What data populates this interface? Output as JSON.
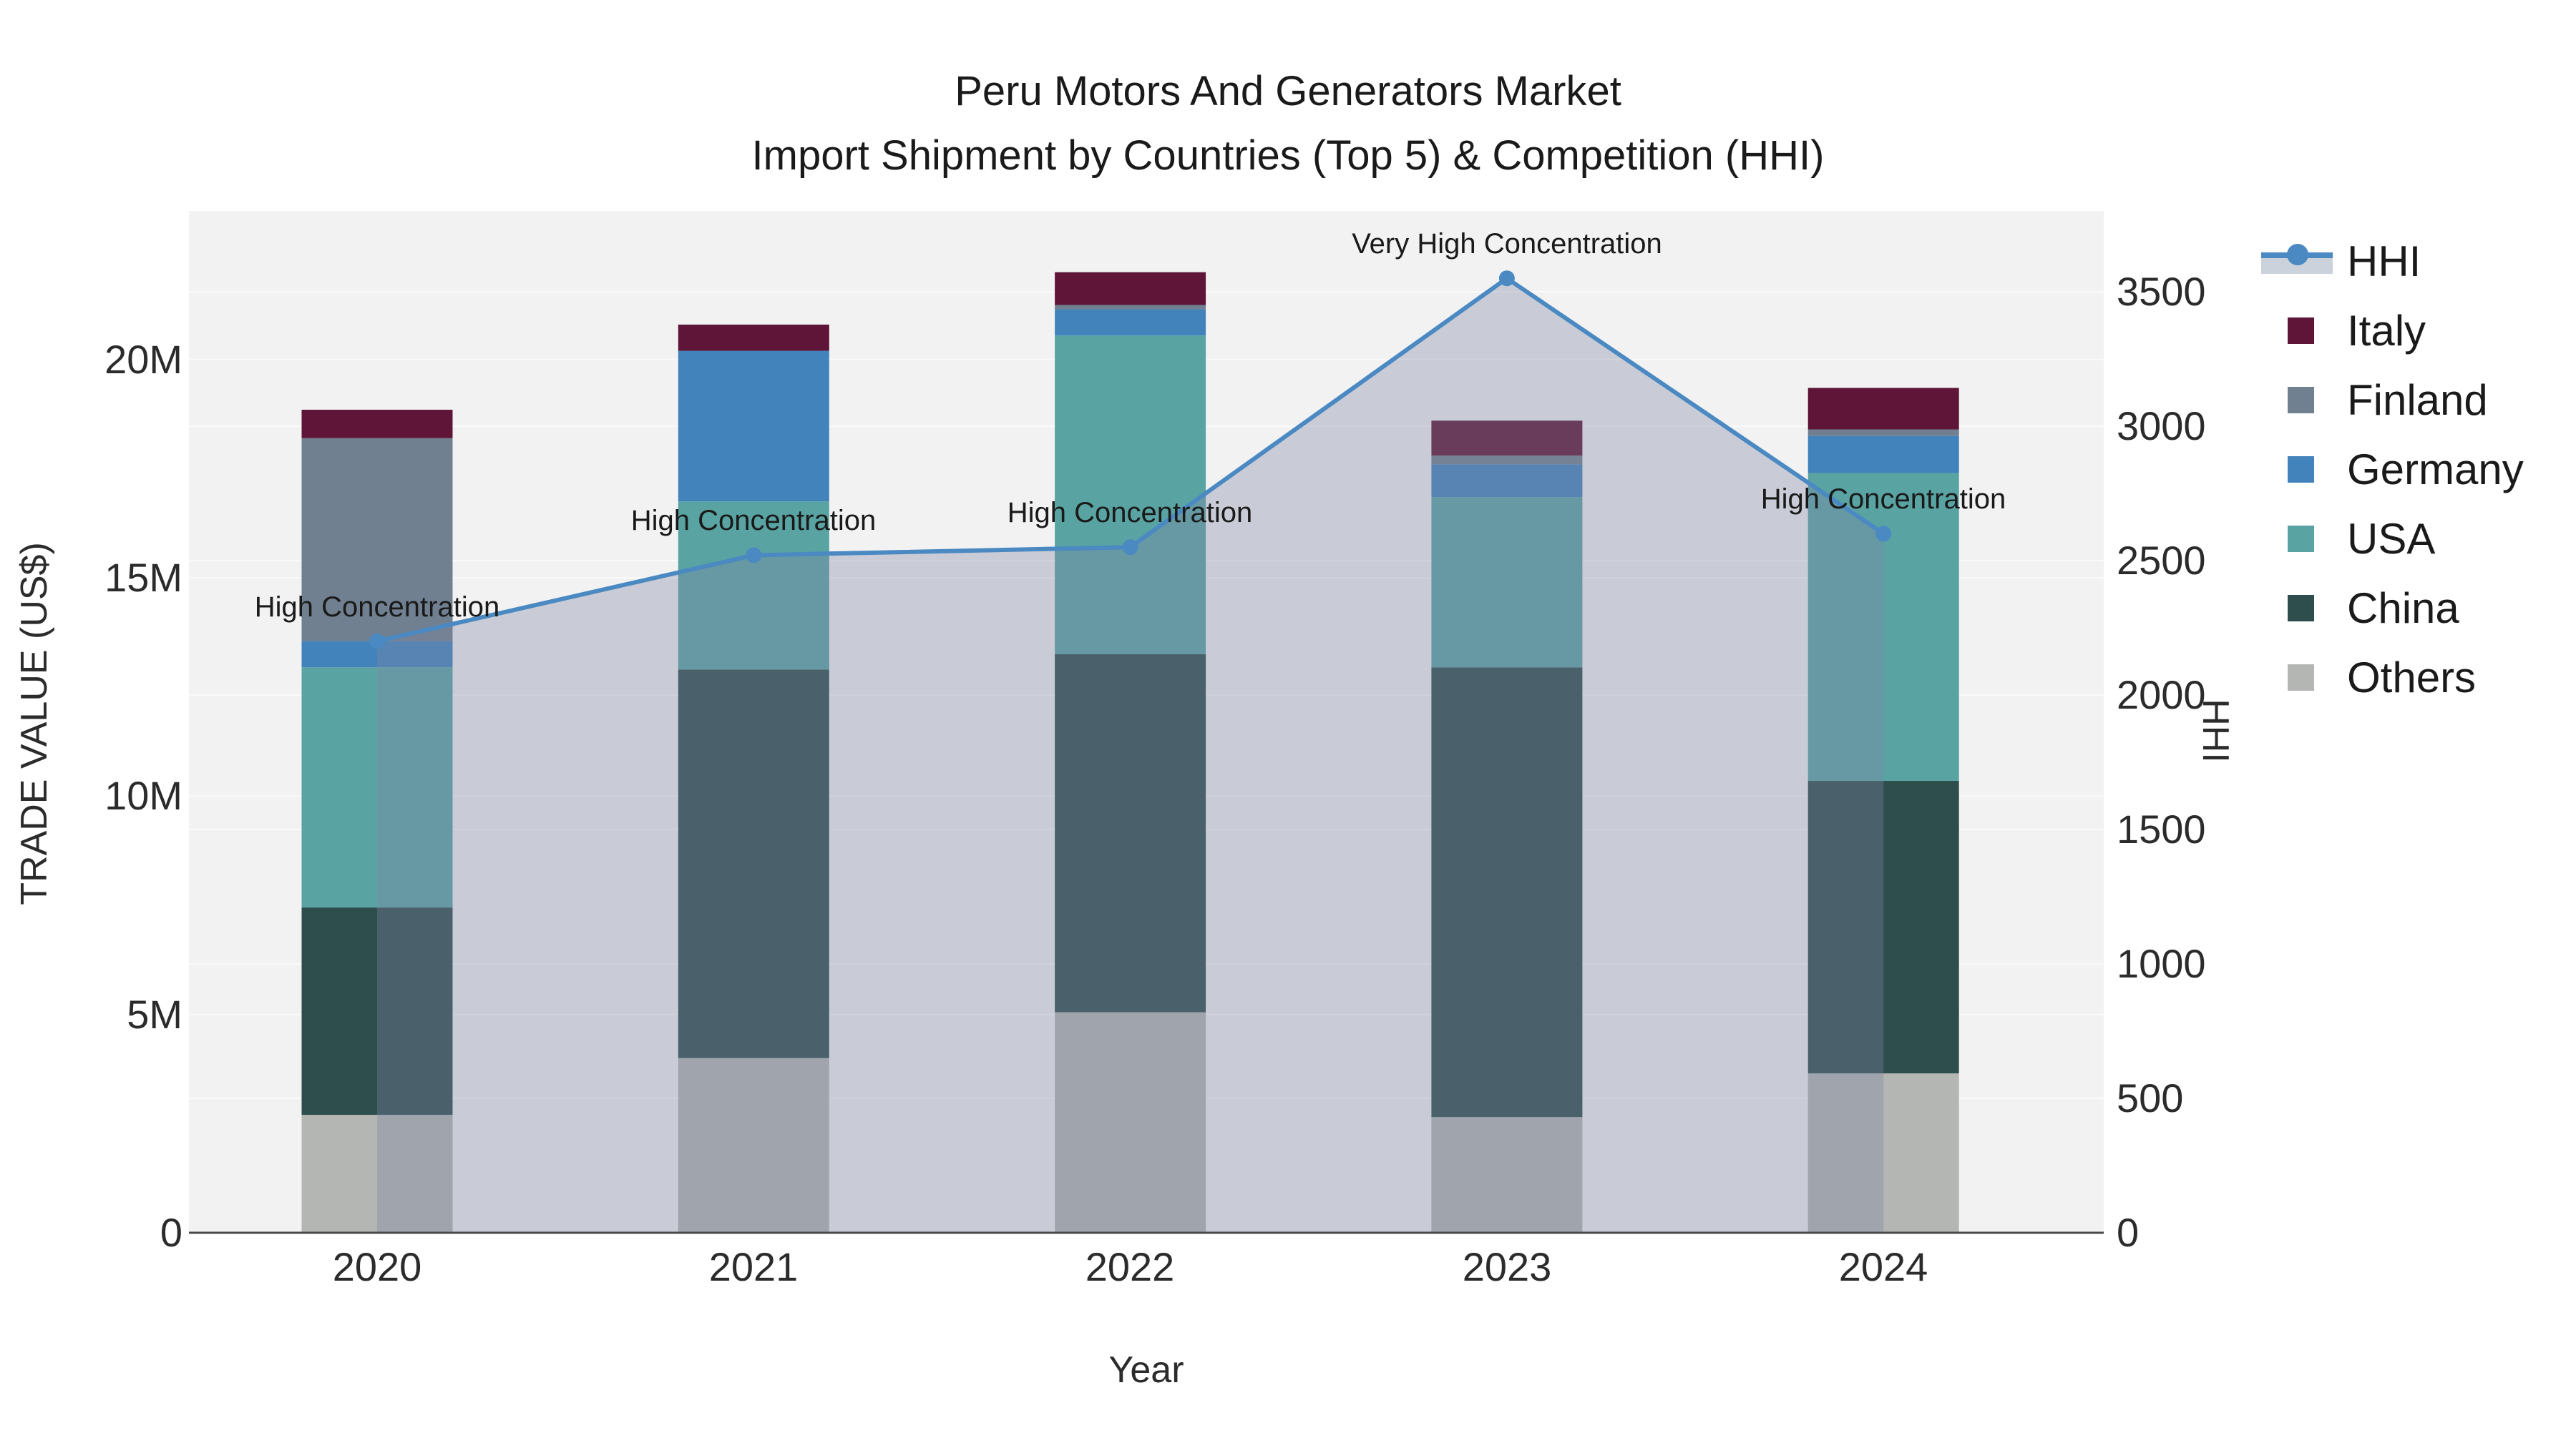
{
  "title": {
    "line1": "Peru Motors And Generators Market",
    "line2": "Import Shipment by Countries (Top 5) & Competition (HHI)"
  },
  "axes": {
    "x_title": "Year",
    "y_left_title": "TRADE VALUE (US$)",
    "y_right_title": "HHI",
    "x_ticks": [
      "2020",
      "2021",
      "2022",
      "2023",
      "2024"
    ],
    "y_left_ticks": [
      "0",
      "5M",
      "10M",
      "15M",
      "20M"
    ],
    "y_right_ticks": [
      "0",
      "500",
      "1000",
      "1500",
      "2000",
      "2500",
      "3000",
      "3500"
    ]
  },
  "legend": {
    "items": [
      {
        "label": "HHI",
        "type": "line",
        "color": "#4a89c2"
      },
      {
        "label": "Italy",
        "type": "square",
        "color": "#5e1537"
      },
      {
        "label": "Finland",
        "type": "square",
        "color": "#708090"
      },
      {
        "label": "Germany",
        "type": "square",
        "color": "#4383bb"
      },
      {
        "label": "USA",
        "type": "square",
        "color": "#5aa3a3"
      },
      {
        "label": "China",
        "type": "square",
        "color": "#2e4e4e"
      },
      {
        "label": "Others",
        "type": "square",
        "color": "#b3b6b2"
      }
    ]
  },
  "chart_data": {
    "type": "bar",
    "stacked": true,
    "title": "Peru Motors And Generators Market - Import Shipment by Countries (Top 5) & Competition (HHI)",
    "categories": [
      "2020",
      "2021",
      "2022",
      "2023",
      "2024"
    ],
    "xlabel": "Year",
    "ylabel_left": "TRADE VALUE (US$)",
    "ylabel_right": "HHI",
    "unit": "million US$",
    "ylim_left": [
      0,
      23.4
    ],
    "ylim_right": [
      0,
      3800
    ],
    "grid": true,
    "legend_position": "right",
    "plot_bg": "#f2f2f2",
    "series": [
      {
        "name": "Others",
        "color": "#b3b6b2",
        "values": [
          2.7,
          4.0,
          5.05,
          2.65,
          3.65
        ]
      },
      {
        "name": "China",
        "color": "#2e4e4e",
        "values": [
          4.75,
          8.9,
          8.2,
          10.3,
          6.7
        ]
      },
      {
        "name": "USA",
        "color": "#5aa3a3",
        "values": [
          5.5,
          3.85,
          7.3,
          3.9,
          7.05
        ]
      },
      {
        "name": "Germany",
        "color": "#4383bb",
        "values": [
          0.6,
          3.45,
          0.6,
          0.75,
          0.85
        ]
      },
      {
        "name": "Finland",
        "color": "#708090",
        "values": [
          4.65,
          0,
          0.1,
          0.2,
          0.15
        ]
      },
      {
        "name": "Italy",
        "color": "#5e1537",
        "values": [
          0.65,
          0.6,
          0.75,
          0.8,
          0.95
        ]
      }
    ],
    "line_series": {
      "name": "HHI",
      "axis": "right",
      "color": "#4a89c2",
      "area_fill": "rgba(125,136,162,0.35)",
      "values": [
        2200,
        2520,
        2550,
        3550,
        2600
      ]
    },
    "annotations": [
      {
        "text": "High Concentration",
        "x": "2020",
        "y": 2200
      },
      {
        "text": "High Concentration",
        "x": "2021",
        "y": 2520
      },
      {
        "text": "High Concentration",
        "x": "2022",
        "y": 2550
      },
      {
        "text": "Very High Concentration",
        "x": "2023",
        "y": 3550
      },
      {
        "text": "High Concentration",
        "x": "2024",
        "y": 2600
      }
    ]
  }
}
